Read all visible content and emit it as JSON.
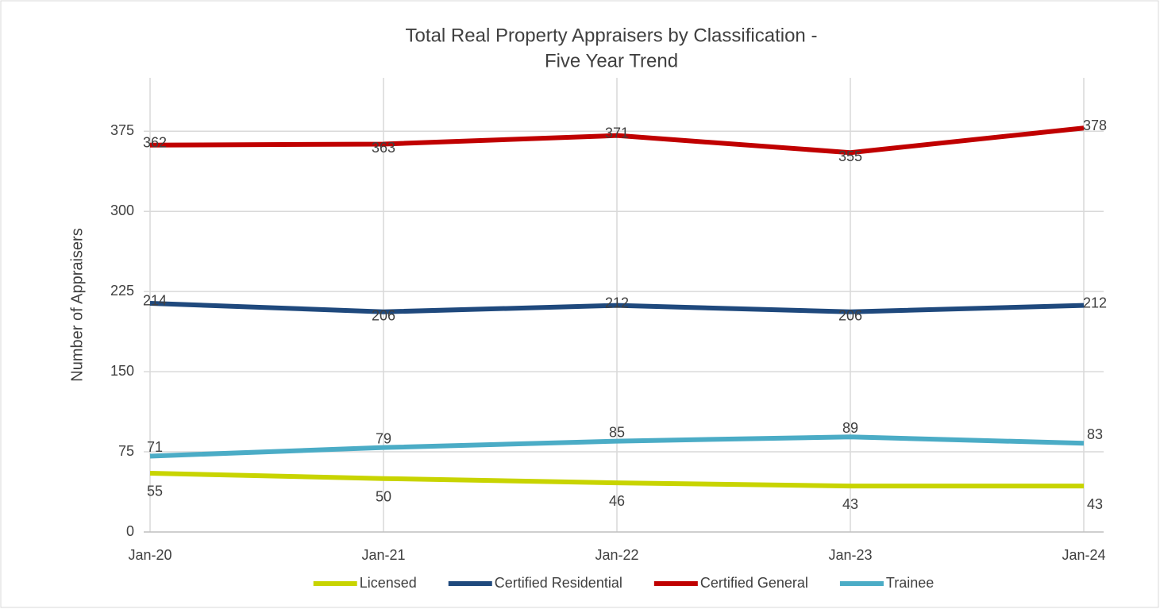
{
  "chart_data": {
    "type": "line",
    "title": [
      "Total Real Property Appraisers by Classification -",
      "Five Year Trend"
    ],
    "y_label": "Number of Appraisers",
    "categories": [
      "Jan-20",
      "Jan-21",
      "Jan-22",
      "Jan-23",
      "Jan-24"
    ],
    "series": [
      {
        "name": "Licensed",
        "color": "#c8d400",
        "values": [
          55,
          50,
          46,
          43,
          43
        ]
      },
      {
        "name": "Certified Residential",
        "color": "#1f497d",
        "values": [
          214,
          206,
          212,
          206,
          212
        ]
      },
      {
        "name": "Certified General",
        "color": "#c00000",
        "values": [
          362,
          363,
          371,
          355,
          378
        ]
      },
      {
        "name": "Trainee",
        "color": "#4bacc6",
        "values": [
          71,
          79,
          85,
          89,
          83
        ]
      }
    ],
    "ylim": [
      0,
      425
    ],
    "yticks": [
      0,
      75,
      150,
      225,
      300,
      375
    ],
    "grid": true,
    "legend": "bottom"
  }
}
